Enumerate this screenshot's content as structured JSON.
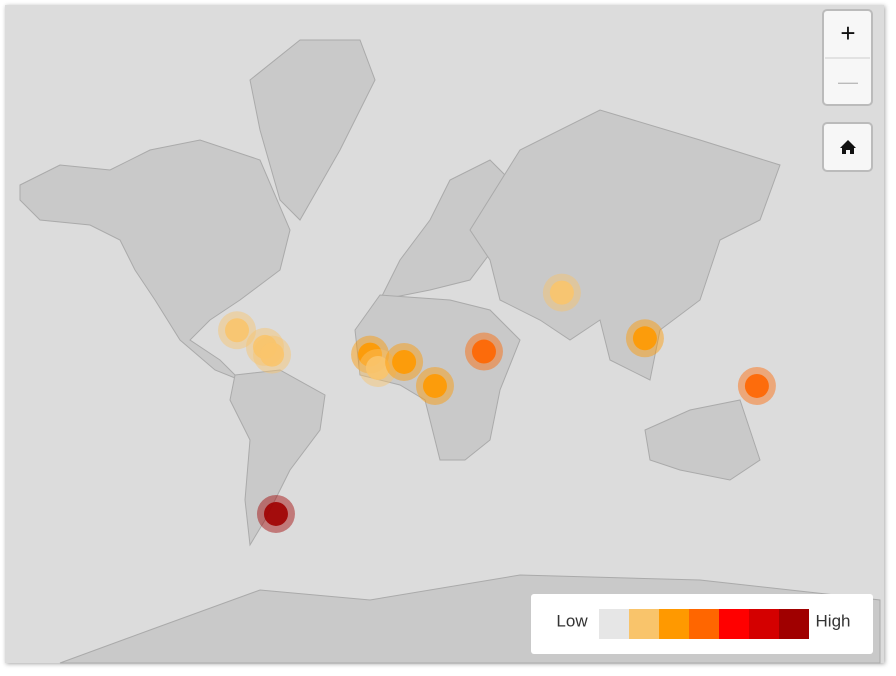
{
  "zoom_controls": {
    "zoom_in": "+",
    "zoom_out": "—"
  },
  "legend": {
    "low_label": "Low",
    "high_label": "High",
    "colors": [
      "#e6e6e6",
      "#f9c46b",
      "#ff9900",
      "#ff6600",
      "#ff0000",
      "#d40000",
      "#a00000"
    ]
  },
  "markers": [
    {
      "lon": -65.3,
      "lat": 25.6,
      "level": 1
    },
    {
      "lon": -53.9,
      "lat": 19.3,
      "level": 1
    },
    {
      "lon": -51.0,
      "lat": 16.3,
      "level": 1
    },
    {
      "lon": -11.0,
      "lat": 16.3,
      "level": 2
    },
    {
      "lon": -7.8,
      "lat": 11.0,
      "level": 1
    },
    {
      "lon": 2.9,
      "lat": 13.4,
      "level": 2
    },
    {
      "lon": 15.5,
      "lat": 3.7,
      "level": 2
    },
    {
      "lon": 35.5,
      "lat": 17.5,
      "level": 3
    },
    {
      "lon": 67.3,
      "lat": 38.6,
      "level": 1
    },
    {
      "lon": 101.2,
      "lat": 22.6,
      "level": 2
    },
    {
      "lon": 146.9,
      "lat": 3.7,
      "level": 3
    },
    {
      "lon": -49.4,
      "lat": -43.7,
      "level": 6
    }
  ]
}
